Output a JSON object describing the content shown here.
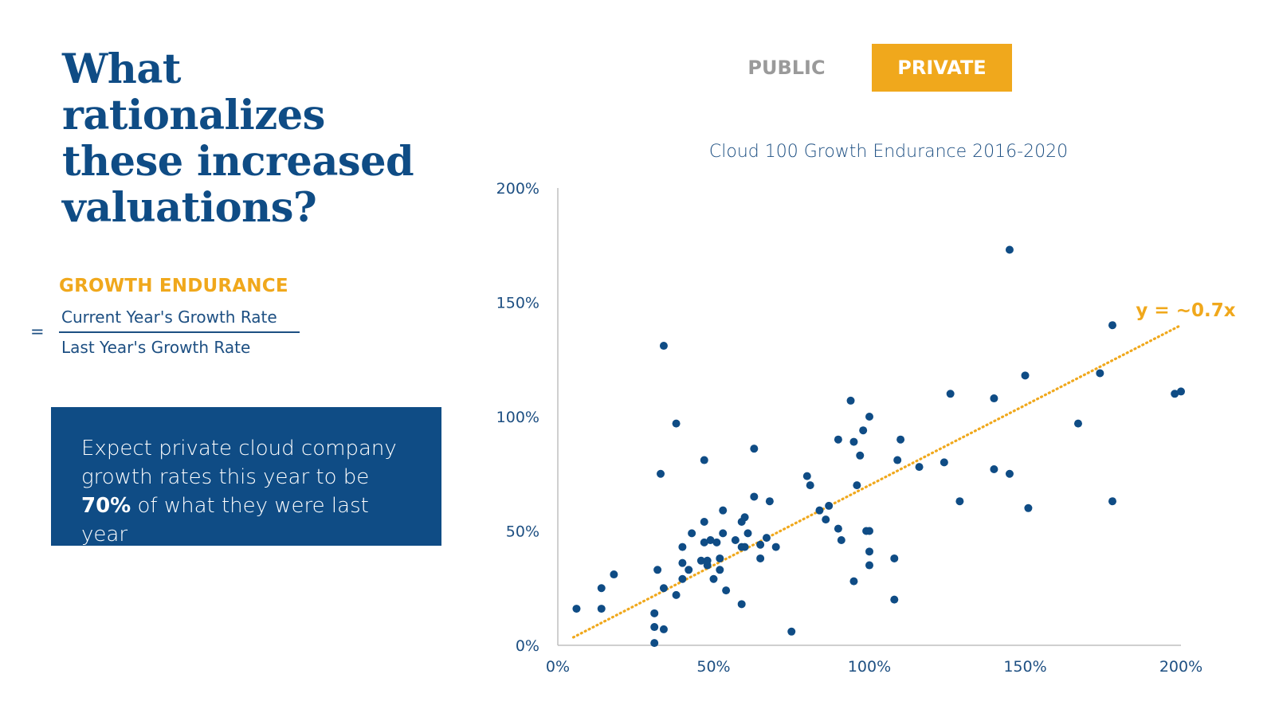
{
  "headline": "What rationalizes these increased valuations?",
  "growth_endurance": {
    "label": "GROWTH ENDURANCE",
    "equals": "=",
    "numerator": "Current Year's Growth Rate",
    "denominator": "Last Year's Growth Rate"
  },
  "callout": {
    "line1": "Expect private cloud company",
    "line2": "growth rates this year to be",
    "bold": "70%",
    "rest": " of what they were last year"
  },
  "tabs": {
    "public": "PUBLIC",
    "private": "PRIVATE",
    "active": "private"
  },
  "colors": {
    "navy": "#0f4c85",
    "gold": "#f0a81c",
    "point": "#0f4c85",
    "trend": "#f0a81c"
  },
  "chart_data": {
    "type": "scatter",
    "title": "Cloud 100 Growth Endurance 2016-2020",
    "xlabel": "",
    "ylabel": "",
    "xlim": [
      0,
      2
    ],
    "ylim": [
      0,
      2
    ],
    "x_ticks": [
      "0%",
      "50%",
      "100%",
      "150%",
      "200%"
    ],
    "y_ticks": [
      "0%",
      "50%",
      "100%",
      "150%",
      "200%"
    ],
    "grid": false,
    "trendline": {
      "label": "y = ~0.7x",
      "slope": 0.7,
      "x_range": [
        0.05,
        2.0
      ],
      "style": "dotted"
    },
    "points": [
      [
        0.06,
        0.16
      ],
      [
        0.14,
        0.25
      ],
      [
        0.14,
        0.16
      ],
      [
        0.18,
        0.31
      ],
      [
        0.31,
        0.01
      ],
      [
        0.31,
        0.14
      ],
      [
        0.31,
        0.08
      ],
      [
        0.32,
        0.33
      ],
      [
        0.33,
        0.75
      ],
      [
        0.34,
        1.31
      ],
      [
        0.34,
        0.25
      ],
      [
        0.34,
        0.07
      ],
      [
        0.38,
        0.22
      ],
      [
        0.38,
        0.97
      ],
      [
        0.4,
        0.43
      ],
      [
        0.4,
        0.36
      ],
      [
        0.4,
        0.29
      ],
      [
        0.42,
        0.33
      ],
      [
        0.43,
        0.49
      ],
      [
        0.46,
        0.37
      ],
      [
        0.47,
        0.45
      ],
      [
        0.47,
        0.54
      ],
      [
        0.47,
        0.81
      ],
      [
        0.48,
        0.35
      ],
      [
        0.48,
        0.37
      ],
      [
        0.49,
        0.46
      ],
      [
        0.5,
        0.29
      ],
      [
        0.51,
        0.45
      ],
      [
        0.52,
        0.38
      ],
      [
        0.52,
        0.33
      ],
      [
        0.53,
        0.49
      ],
      [
        0.53,
        0.59
      ],
      [
        0.54,
        0.24
      ],
      [
        0.57,
        0.46
      ],
      [
        0.59,
        0.18
      ],
      [
        0.59,
        0.54
      ],
      [
        0.59,
        0.43
      ],
      [
        0.6,
        0.56
      ],
      [
        0.6,
        0.43
      ],
      [
        0.61,
        0.49
      ],
      [
        0.63,
        0.86
      ],
      [
        0.63,
        0.65
      ],
      [
        0.65,
        0.38
      ],
      [
        0.65,
        0.44
      ],
      [
        0.67,
        0.47
      ],
      [
        0.68,
        0.63
      ],
      [
        0.7,
        0.43
      ],
      [
        0.75,
        0.06
      ],
      [
        0.8,
        0.74
      ],
      [
        0.81,
        0.7
      ],
      [
        0.84,
        0.59
      ],
      [
        0.86,
        0.55
      ],
      [
        0.87,
        0.61
      ],
      [
        0.9,
        0.9
      ],
      [
        0.9,
        0.51
      ],
      [
        0.91,
        0.46
      ],
      [
        0.94,
        1.07
      ],
      [
        0.95,
        0.28
      ],
      [
        0.95,
        0.89
      ],
      [
        0.96,
        0.7
      ],
      [
        0.97,
        0.83
      ],
      [
        0.98,
        0.94
      ],
      [
        0.99,
        0.5
      ],
      [
        1.0,
        1.0
      ],
      [
        1.0,
        0.5
      ],
      [
        1.0,
        0.41
      ],
      [
        1.0,
        0.35
      ],
      [
        1.08,
        0.2
      ],
      [
        1.08,
        0.38
      ],
      [
        1.09,
        0.81
      ],
      [
        1.1,
        0.9
      ],
      [
        1.16,
        0.78
      ],
      [
        1.24,
        0.8
      ],
      [
        1.26,
        1.1
      ],
      [
        1.29,
        0.63
      ],
      [
        1.4,
        1.08
      ],
      [
        1.4,
        0.77
      ],
      [
        1.45,
        1.73
      ],
      [
        1.45,
        0.75
      ],
      [
        1.5,
        1.18
      ],
      [
        1.51,
        0.6
      ],
      [
        1.67,
        0.97
      ],
      [
        1.74,
        1.19
      ],
      [
        1.78,
        1.4
      ],
      [
        1.78,
        0.63
      ],
      [
        1.98,
        1.1
      ],
      [
        2.0,
        1.11
      ]
    ]
  }
}
